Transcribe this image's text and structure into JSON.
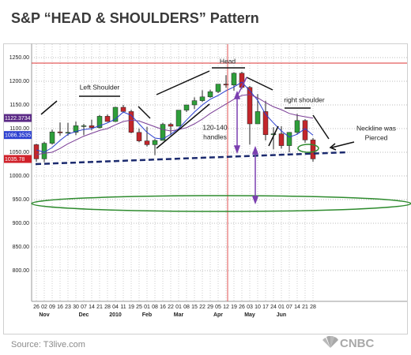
{
  "title": "S&P “HEAD & SHOULDERS” Pattern",
  "source": "Source: T3live.com",
  "logo": "CNBC",
  "annotations": {
    "head": "Head",
    "left_shoulder": "Left Shoulder",
    "right_shoulder": "right shoulder",
    "handles": [
      "120-140",
      "handles"
    ],
    "neckline": [
      "Neckline was",
      "Pierced"
    ]
  },
  "chart_data": {
    "type": "candlestick",
    "categories": [
      "26",
      "02",
      "09",
      "16",
      "23",
      "30",
      "07",
      "14",
      "21",
      "28",
      "04",
      "11",
      "19",
      "25",
      "01",
      "08",
      "16",
      "22",
      "01",
      "08",
      "15",
      "22",
      "29",
      "05",
      "12",
      "19",
      "26",
      "03",
      "10",
      "17",
      "24",
      "01",
      "07",
      "14",
      "21",
      "28"
    ],
    "months": [
      null,
      "Nov",
      null,
      null,
      null,
      null,
      "Dec",
      null,
      null,
      null,
      "2010",
      null,
      null,
      null,
      "Feb",
      null,
      null,
      null,
      "Mar",
      null,
      null,
      null,
      null,
      "Apr",
      null,
      null,
      null,
      "May",
      null,
      null,
      null,
      "Jun",
      null,
      null,
      null,
      null
    ],
    "open": [
      1066,
      1036,
      1069,
      1093,
      1091,
      1092,
      1106,
      1106,
      1102,
      1126,
      1115,
      1145,
      1136,
      1092,
      1074,
      1066,
      1075,
      1109,
      1105,
      1139,
      1150,
      1159,
      1167,
      1178,
      1194,
      1192,
      1217,
      1187,
      1110,
      1136,
      1087,
      1089,
      1064,
      1092,
      1117,
      1076
    ],
    "high": [
      1068,
      1072,
      1098,
      1113,
      1112,
      1115,
      1110,
      1119,
      1129,
      1130,
      1146,
      1150,
      1140,
      1100,
      1104,
      1078,
      1112,
      1112,
      1139,
      1150,
      1166,
      1181,
      1182,
      1194,
      1213,
      1219,
      1220,
      1190,
      1173,
      1159,
      1103,
      1105,
      1092,
      1131,
      1120,
      1080
    ],
    "low": [
      1030,
      1029,
      1066,
      1085,
      1085,
      1086,
      1086,
      1096,
      1100,
      1114,
      1114,
      1134,
      1090,
      1071,
      1062,
      1044,
      1075,
      1086,
      1105,
      1135,
      1141,
      1156,
      1165,
      1175,
      1186,
      1180,
      1184,
      1066,
      1110,
      1075,
      1056,
      1058,
      1050,
      1088,
      1070,
      1030
    ],
    "close": [
      1036,
      1069,
      1093,
      1091,
      1092,
      1106,
      1106,
      1102,
      1126,
      1115,
      1145,
      1136,
      1092,
      1074,
      1066,
      1075,
      1109,
      1105,
      1139,
      1150,
      1159,
      1167,
      1178,
      1194,
      1192,
      1217,
      1187,
      1110,
      1136,
      1087,
      1089,
      1064,
      1092,
      1117,
      1076,
      1036
    ],
    "up_color": "#2e9e3a",
    "down_color": "#c3262b",
    "lines": [
      {
        "color": "#2b3fd0",
        "values": [
          1055,
          1050,
          1060,
          1075,
          1088,
          1094,
          1098,
          1100,
          1106,
          1112,
          1120,
          1135,
          1128,
          1110,
          1092,
          1080,
          1078,
          1088,
          1100,
          1118,
          1135,
          1150,
          1162,
          1170,
          1180,
          1188,
          1198,
          1180,
          1160,
          1130,
          1112,
          1095,
          1082,
          1088,
          1100,
          1086
        ]
      },
      {
        "color": "#7a3d96",
        "values": [
          1045,
          1048,
          1050,
          1058,
          1068,
          1076,
          1084,
          1090,
          1096,
          1100,
          1108,
          1115,
          1118,
          1116,
          1110,
          1104,
          1098,
          1095,
          1098,
          1102,
          1110,
          1120,
          1132,
          1142,
          1152,
          1162,
          1170,
          1172,
          1165,
          1155,
          1146,
          1140,
          1132,
          1128,
          1125,
          1122
        ]
      }
    ],
    "level_markers": [
      {
        "value": 1122.3734,
        "color": "#5b2a86"
      },
      {
        "value": 1086.3535,
        "color": "#2b3fd0"
      },
      {
        "value": 1035.78,
        "color": "#d0212a"
      }
    ],
    "ylim": [
      740,
      1260
    ],
    "yticks": [
      {
        "value": 800,
        "label": "800.00"
      },
      {
        "value": 850,
        "label": "850.00"
      },
      {
        "value": 900,
        "label": "900.00"
      },
      {
        "value": 950,
        "label": "950.00"
      },
      {
        "value": 1000,
        "label": "1000.00"
      },
      {
        "value": 1050,
        "label": "1050.00"
      },
      {
        "value": 1100,
        "label": "1100.00"
      },
      {
        "value": 1150,
        "label": "1150.00"
      },
      {
        "value": 1200,
        "label": "1200.00"
      },
      {
        "value": 1250,
        "label": "1250.00"
      }
    ],
    "grid": true
  }
}
